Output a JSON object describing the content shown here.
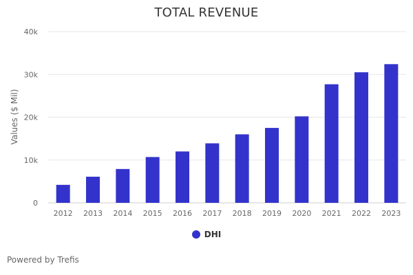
{
  "chart_data": {
    "type": "bar",
    "title": "TOTAL REVENUE",
    "xlabel": "",
    "ylabel": "Values ($ Mil)",
    "categories": [
      "2012",
      "2013",
      "2014",
      "2015",
      "2016",
      "2017",
      "2018",
      "2019",
      "2020",
      "2021",
      "2022",
      "2023"
    ],
    "series": [
      {
        "name": "DHI",
        "color": "#3333cc",
        "values": [
          4200,
          6100,
          7900,
          10700,
          12000,
          13900,
          16000,
          17500,
          20200,
          27700,
          30500,
          32400
        ]
      }
    ],
    "ylim": [
      0,
      40000
    ],
    "yticks": [
      0,
      10000,
      20000,
      30000,
      40000
    ],
    "ytick_labels": [
      "0",
      "10k",
      "20k",
      "30k",
      "40k"
    ],
    "grid": true,
    "legend": "bottom-center"
  },
  "footer": {
    "credit": "Powered by Trefis"
  }
}
